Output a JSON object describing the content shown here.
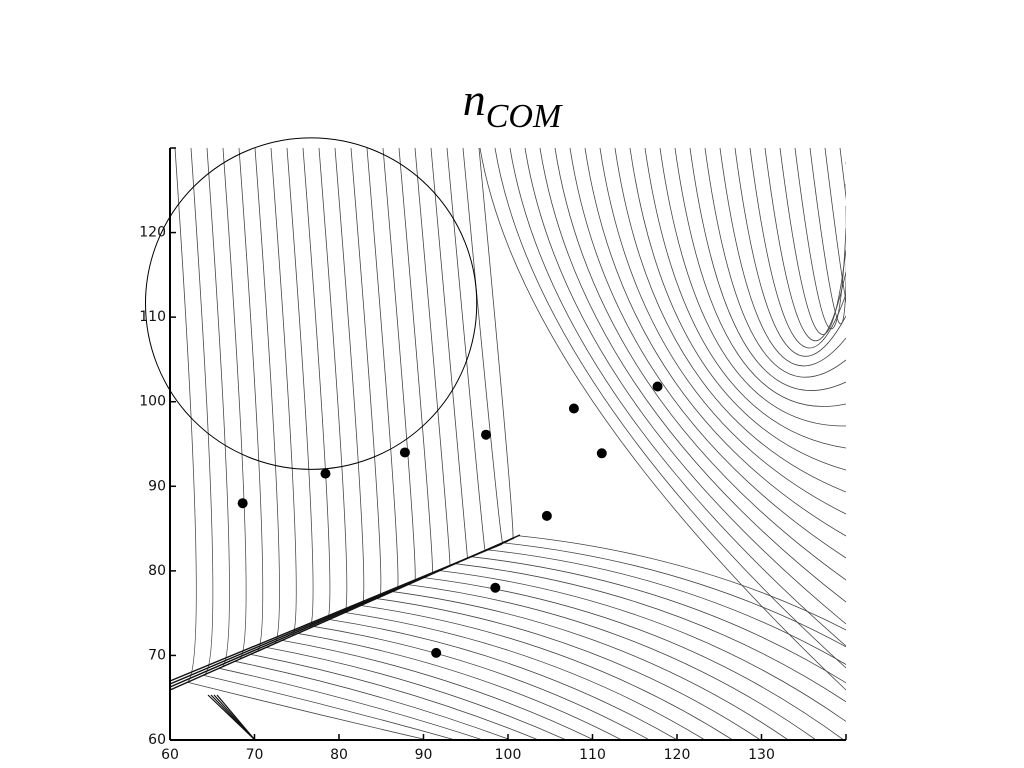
{
  "chart_data": {
    "type": "scatter",
    "title": {
      "text": "n",
      "subscript": "COM"
    },
    "x": [
      68.6,
      78.4,
      87.8,
      97.4,
      107.8,
      117.7,
      111.1,
      104.6,
      98.5,
      91.5
    ],
    "values": [
      88.0,
      91.5,
      94.0,
      96.1,
      99.2,
      101.8,
      93.9,
      86.5,
      78.0,
      70.3
    ],
    "color": "#000000",
    "circle": {
      "cx": 76.7,
      "cy": 111.6,
      "r": 19.6
    },
    "xlim": [
      60,
      140
    ],
    "ylim": [
      60,
      130
    ],
    "xticks": [
      60,
      70,
      80,
      90,
      100,
      110,
      120,
      130
    ],
    "yticks": [
      60,
      70,
      80,
      90,
      100,
      110,
      120
    ],
    "grid": false
  }
}
